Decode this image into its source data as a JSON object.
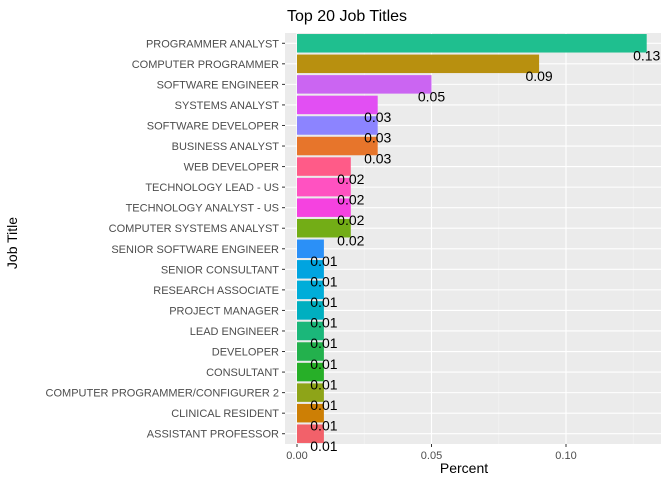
{
  "chart_data": {
    "type": "bar",
    "orientation": "horizontal",
    "title": "Top 20 Job Titles",
    "xlabel": "Percent",
    "ylabel": "Job Title",
    "xlim": [
      0,
      0.13
    ],
    "x_ticks": [
      0,
      0.05,
      0.1
    ],
    "x_tick_labels": [
      "0.00",
      "0.05",
      "0.10"
    ],
    "grid": true,
    "legend": "none",
    "panel_background": "#ebebeb",
    "categories": [
      "PROGRAMMER ANALYST",
      "COMPUTER PROGRAMMER",
      "SOFTWARE ENGINEER",
      "SYSTEMS ANALYST",
      "SOFTWARE DEVELOPER",
      "BUSINESS ANALYST",
      "WEB DEVELOPER",
      "TECHNOLOGY LEAD - US",
      "TECHNOLOGY ANALYST - US",
      "COMPUTER SYSTEMS ANALYST",
      "SENIOR SOFTWARE ENGINEER",
      "SENIOR CONSULTANT",
      "RESEARCH ASSOCIATE",
      "PROJECT MANAGER",
      "LEAD ENGINEER",
      "DEVELOPER",
      "CONSULTANT",
      "COMPUTER PROGRAMMER/CONFIGURER 2",
      "CLINICAL RESIDENT",
      "ASSISTANT PROFESSOR"
    ],
    "values": [
      0.13,
      0.09,
      0.05,
      0.03,
      0.03,
      0.03,
      0.02,
      0.02,
      0.02,
      0.02,
      0.01,
      0.01,
      0.01,
      0.01,
      0.01,
      0.01,
      0.01,
      0.01,
      0.01,
      0.01
    ],
    "data_labels": [
      "0.13",
      "0.09",
      "0.05",
      "0.03",
      "0.03",
      "0.03",
      "0.02",
      "0.02",
      "0.02",
      "0.02",
      "0.01",
      "0.01",
      "0.01",
      "0.01",
      "0.01",
      "0.01",
      "0.01",
      "0.01",
      "0.01",
      "0.01"
    ],
    "colors": [
      "#1FBF8F",
      "#B8900F",
      "#CB65F2",
      "#E24FF3",
      "#8C84FF",
      "#E7752B",
      "#FF5B88",
      "#FF52C1",
      "#F542E0",
      "#73AD16",
      "#2B90F7",
      "#00A4E0",
      "#00ADD9",
      "#00AFC0",
      "#1BB77A",
      "#23B14D",
      "#27AF28",
      "#8EA418",
      "#CD7F05",
      "#F2616A"
    ]
  }
}
